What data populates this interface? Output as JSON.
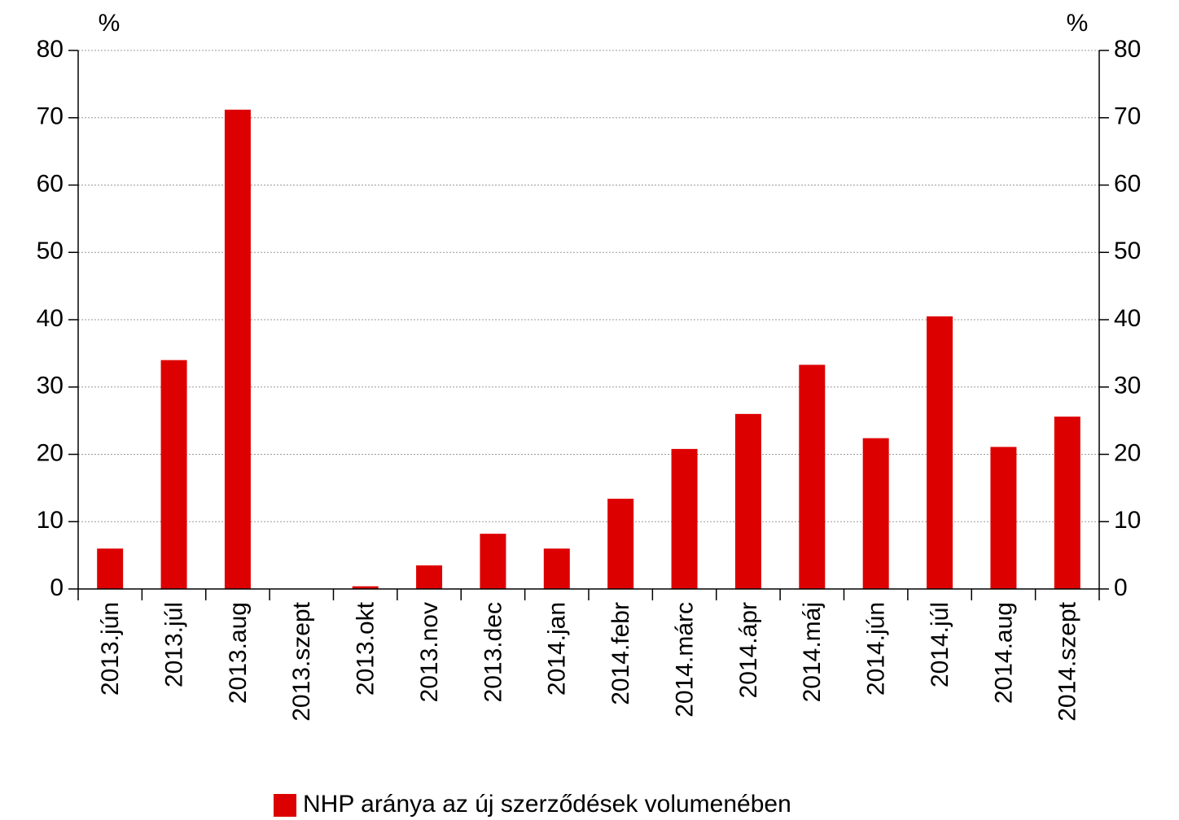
{
  "chart_data": {
    "type": "bar",
    "y_unit": "%",
    "y2_unit": "%",
    "categories": [
      "2013.jún",
      "2013.júl",
      "2013.aug",
      "2013.szept",
      "2013.okt",
      "2013.nov",
      "2013.dec",
      "2014.jan",
      "2014.febr",
      "2014.márc",
      "2014.ápr",
      "2014.máj",
      "2014.jún",
      "2014.júl",
      "2014.aug",
      "2014.szept"
    ],
    "series": [
      {
        "name": "NHP aránya az új szerződések volumenében",
        "color": "#dd0000",
        "values": [
          6,
          34,
          71.2,
          0,
          0.4,
          3.5,
          8.2,
          6,
          13.4,
          20.8,
          26,
          33.3,
          22.4,
          40.5,
          21.1,
          25.6
        ]
      }
    ],
    "ylim": [
      0,
      80
    ],
    "yticks": [
      0,
      10,
      20,
      30,
      40,
      50,
      60,
      70,
      80
    ],
    "y2lim": [
      0,
      80
    ],
    "y2ticks": [
      0,
      10,
      20,
      30,
      40,
      50,
      60,
      70,
      80
    ],
    "grid": true,
    "legend": "bottom"
  }
}
